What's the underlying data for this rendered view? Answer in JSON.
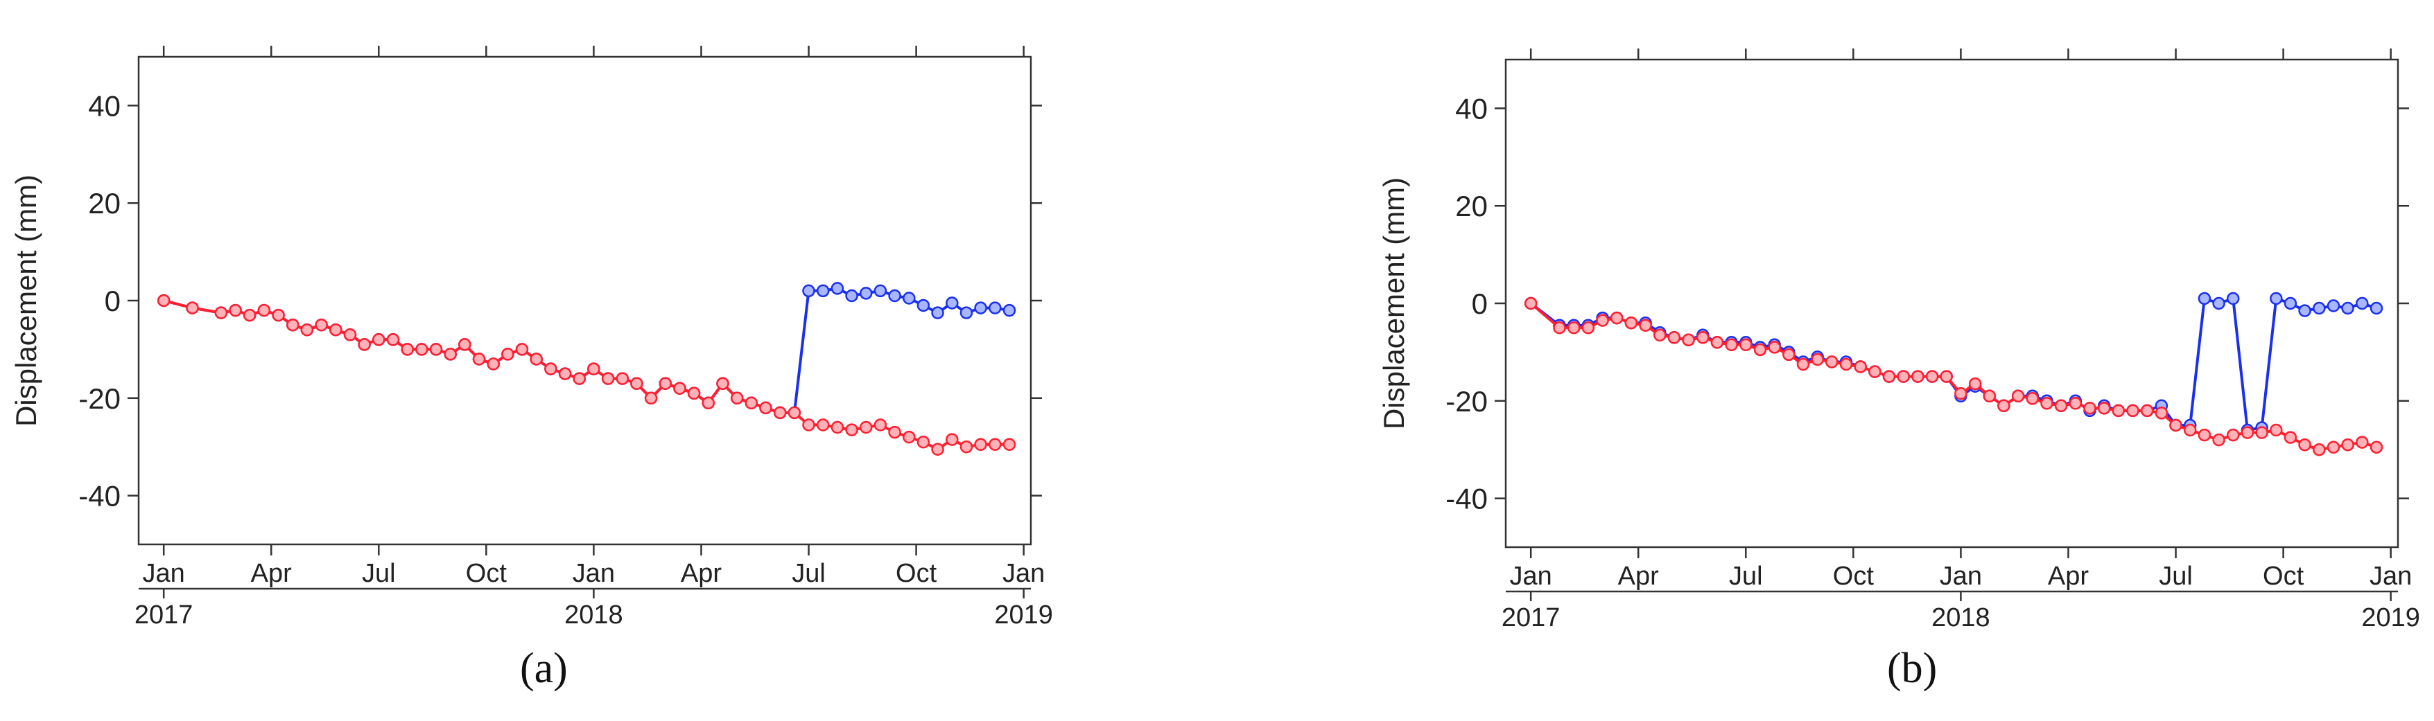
{
  "figure": {
    "captions": [
      "(a)",
      "(b)"
    ]
  },
  "colors": {
    "series1": "#1a2ff0",
    "series2": "#ff1f2f",
    "axis": "#333333"
  },
  "chart_data": [
    {
      "type": "line",
      "panel": "(a)",
      "ylabel": "Displacement (mm)",
      "xlabel": "",
      "ylim": [
        -50,
        50
      ],
      "yticks": [
        -40,
        -20,
        0,
        20,
        40
      ],
      "xrange_months": [
        -0.7,
        24.2
      ],
      "month_ticks": [
        {
          "m": 0,
          "label": "Jan"
        },
        {
          "m": 3,
          "label": "Apr"
        },
        {
          "m": 6,
          "label": "Jul"
        },
        {
          "m": 9,
          "label": "Oct"
        },
        {
          "m": 12,
          "label": "Jan"
        },
        {
          "m": 15,
          "label": "Apr"
        },
        {
          "m": 18,
          "label": "Jul"
        },
        {
          "m": 21,
          "label": "Oct"
        },
        {
          "m": 24,
          "label": "Jan"
        }
      ],
      "year_ticks": [
        {
          "m": 0,
          "label": "2017"
        },
        {
          "m": 12,
          "label": "2018"
        },
        {
          "m": 24,
          "label": "2019"
        }
      ],
      "series": [
        {
          "name": "blue",
          "color": "#1a2ff0",
          "x": [
            0,
            0.8,
            1.6,
            2.0,
            2.4,
            2.8,
            3.2,
            3.6,
            4.0,
            4.4,
            4.8,
            5.2,
            5.6,
            6.0,
            6.4,
            6.8,
            7.2,
            7.6,
            8.0,
            8.4,
            8.8,
            9.2,
            9.6,
            10.0,
            10.4,
            10.8,
            11.2,
            11.6,
            12.0,
            12.4,
            12.8,
            13.2,
            13.6,
            14.0,
            14.4,
            14.8,
            15.2,
            15.6,
            16.0,
            16.4,
            16.8,
            17.2,
            17.6,
            18.0,
            18.4,
            18.8,
            19.2,
            19.6,
            20.0,
            20.4,
            20.8,
            21.2,
            21.6,
            22.0,
            22.4,
            22.8,
            23.2,
            23.6
          ],
          "y": [
            0,
            -1.5,
            -2.5,
            -2,
            -3,
            -2,
            -3,
            -5,
            -6,
            -5,
            -6,
            -7,
            -9,
            -8,
            -8,
            -10,
            -10,
            -10,
            -11,
            -9,
            -12,
            -13,
            -11,
            -10,
            -12,
            -14,
            -15,
            -16,
            -14,
            -16,
            -16,
            -17,
            -20,
            -17,
            -18,
            -19,
            -21,
            -17,
            -20,
            -21,
            -22,
            -23,
            -23,
            2,
            2,
            2.5,
            1,
            1.5,
            2,
            1,
            0.5,
            -1,
            -2.5,
            -0.5,
            -2.5,
            -1.5,
            -1.5,
            -2
          ]
        },
        {
          "name": "red",
          "color": "#ff1f2f",
          "x": [
            0,
            0.8,
            1.6,
            2.0,
            2.4,
            2.8,
            3.2,
            3.6,
            4.0,
            4.4,
            4.8,
            5.2,
            5.6,
            6.0,
            6.4,
            6.8,
            7.2,
            7.6,
            8.0,
            8.4,
            8.8,
            9.2,
            9.6,
            10.0,
            10.4,
            10.8,
            11.2,
            11.6,
            12.0,
            12.4,
            12.8,
            13.2,
            13.6,
            14.0,
            14.4,
            14.8,
            15.2,
            15.6,
            16.0,
            16.4,
            16.8,
            17.2,
            17.6,
            18.0,
            18.4,
            18.8,
            19.2,
            19.6,
            20.0,
            20.4,
            20.8,
            21.2,
            21.6,
            22.0,
            22.4,
            22.8,
            23.2,
            23.6
          ],
          "y": [
            0,
            -1.5,
            -2.5,
            -2,
            -3,
            -2,
            -3,
            -5,
            -6,
            -5,
            -6,
            -7,
            -9,
            -8,
            -8,
            -10,
            -10,
            -10,
            -11,
            -9,
            -12,
            -13,
            -11,
            -10,
            -12,
            -14,
            -15,
            -16,
            -14,
            -16,
            -16,
            -17,
            -20,
            -17,
            -18,
            -19,
            -21,
            -17,
            -20,
            -21,
            -22,
            -23,
            -23,
            -25.5,
            -25.5,
            -26,
            -26.5,
            -26,
            -25.5,
            -27,
            -28,
            -29,
            -30.5,
            -28.5,
            -30,
            -29.5,
            -29.5,
            -29.5
          ]
        }
      ]
    },
    {
      "type": "line",
      "panel": "(b)",
      "ylabel": "Displacement (mm)",
      "xlabel": "",
      "ylim": [
        -50,
        50
      ],
      "yticks": [
        -40,
        -20,
        0,
        20,
        40
      ],
      "xrange_months": [
        -0.7,
        24.2
      ],
      "month_ticks": [
        {
          "m": 0,
          "label": "Jan"
        },
        {
          "m": 3,
          "label": "Apr"
        },
        {
          "m": 6,
          "label": "Jul"
        },
        {
          "m": 9,
          "label": "Oct"
        },
        {
          "m": 12,
          "label": "Jan"
        },
        {
          "m": 15,
          "label": "Apr"
        },
        {
          "m": 18,
          "label": "Jul"
        },
        {
          "m": 21,
          "label": "Oct"
        },
        {
          "m": 24,
          "label": "Jan"
        }
      ],
      "year_ticks": [
        {
          "m": 0,
          "label": "2017"
        },
        {
          "m": 12,
          "label": "2018"
        },
        {
          "m": 24,
          "label": "2019"
        }
      ],
      "series": [
        {
          "name": "blue",
          "color": "#1a2ff0",
          "x": [
            0,
            0.8,
            1.2,
            1.6,
            2.0,
            2.4,
            2.8,
            3.2,
            3.6,
            4.0,
            4.4,
            4.8,
            5.2,
            5.6,
            6.0,
            6.4,
            6.8,
            7.2,
            7.6,
            8.0,
            8.4,
            8.8,
            9.2,
            9.6,
            10.0,
            10.4,
            10.8,
            11.2,
            11.6,
            12.0,
            12.4,
            12.8,
            13.2,
            13.6,
            14.0,
            14.4,
            14.8,
            15.2,
            15.6,
            16.0,
            16.4,
            16.8,
            17.2,
            17.6,
            18.0,
            18.4,
            18.8,
            19.2,
            19.6,
            20.0,
            20.4,
            20.8,
            21.2,
            21.6,
            22.0,
            22.4,
            22.8,
            23.2,
            23.6
          ],
          "y": [
            0,
            -4.5,
            -4.5,
            -4.5,
            -3,
            -3,
            -4,
            -4,
            -6,
            -7,
            -7.5,
            -6.5,
            -8,
            -8,
            -8,
            -9,
            -8.5,
            -10,
            -12,
            -11,
            -12,
            -12,
            -13,
            -14,
            -15,
            -15,
            -15,
            -15,
            -15,
            -19,
            -17,
            -19,
            -21,
            -19,
            -19,
            -20,
            -21,
            -20,
            -22,
            -21,
            -22,
            -22,
            -22,
            -21,
            -25,
            -25,
            1,
            0,
            1,
            -26,
            -25.5,
            1,
            0,
            -1.5,
            -1,
            -0.5,
            -1,
            0,
            -1
          ]
        },
        {
          "name": "red",
          "color": "#ff1f2f",
          "x": [
            0,
            0.8,
            1.2,
            1.6,
            2.0,
            2.4,
            2.8,
            3.2,
            3.6,
            4.0,
            4.4,
            4.8,
            5.2,
            5.6,
            6.0,
            6.4,
            6.8,
            7.2,
            7.6,
            8.0,
            8.4,
            8.8,
            9.2,
            9.6,
            10.0,
            10.4,
            10.8,
            11.2,
            11.6,
            12.0,
            12.4,
            12.8,
            13.2,
            13.6,
            14.0,
            14.4,
            14.8,
            15.2,
            15.6,
            16.0,
            16.4,
            16.8,
            17.2,
            17.6,
            18.0,
            18.4,
            18.8,
            19.2,
            19.6,
            20.0,
            20.4,
            20.8,
            21.2,
            21.6,
            22.0,
            22.4,
            22.8,
            23.2,
            23.6
          ],
          "y": [
            0,
            -5,
            -5,
            -5,
            -3.5,
            -3,
            -4,
            -4.5,
            -6.5,
            -7,
            -7.5,
            -7,
            -8,
            -8.5,
            -8.5,
            -9.5,
            -9,
            -10.5,
            -12.5,
            -11.5,
            -12,
            -12.5,
            -13,
            -14,
            -15,
            -15,
            -15,
            -15,
            -15,
            -18.5,
            -16.5,
            -19,
            -21,
            -19,
            -19.5,
            -20.5,
            -21,
            -20.5,
            -21.5,
            -21.5,
            -22,
            -22,
            -22,
            -22.5,
            -25,
            -26,
            -27,
            -28,
            -27,
            -26.5,
            -26.5,
            -26,
            -27.5,
            -29,
            -30,
            -29.5,
            -29,
            -28.5,
            -29.5
          ]
        }
      ]
    }
  ]
}
